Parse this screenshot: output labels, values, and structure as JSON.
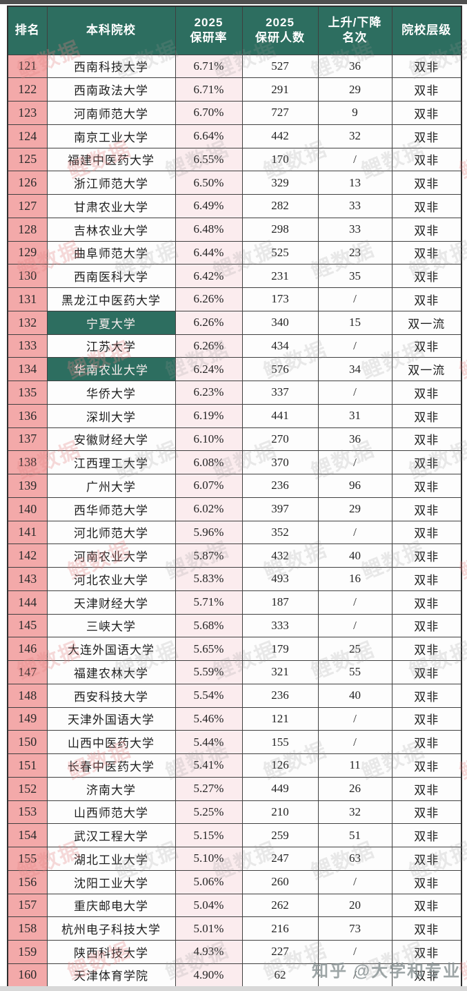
{
  "page": {
    "credit": "知乎 @大学和专业",
    "watermark": "鲤数据"
  },
  "colors": {
    "header_bg": "#2d6e60",
    "rank_bg": "#f3a9a9",
    "rate_bg": "#fbecee",
    "highlight_bg": "#2d6e60",
    "border": "#3f3f3f"
  },
  "chart_data": {
    "type": "table",
    "title": "2025保研率院校排名 121-160",
    "columns": [
      "排名",
      "本科院校",
      "2025保研率",
      "2025保研人数",
      "上升/下降名次",
      "院校层级"
    ],
    "header_display": [
      "排名",
      "本科院校",
      "2025\n保研率",
      "2025\n保研人数",
      "上升/下降\n名次",
      "院校层级"
    ],
    "rows": [
      {
        "rank": "121",
        "name": "西南科技大学",
        "rate": "6.71%",
        "count": "527",
        "change": "36",
        "level": "双非",
        "highlight": false
      },
      {
        "rank": "122",
        "name": "西南政法大学",
        "rate": "6.71%",
        "count": "291",
        "change": "29",
        "level": "双非",
        "highlight": false
      },
      {
        "rank": "123",
        "name": "河南师范大学",
        "rate": "6.70%",
        "count": "727",
        "change": "9",
        "level": "双非",
        "highlight": false
      },
      {
        "rank": "124",
        "name": "南京工业大学",
        "rate": "6.64%",
        "count": "442",
        "change": "32",
        "level": "双非",
        "highlight": false
      },
      {
        "rank": "125",
        "name": "福建中医药大学",
        "rate": "6.55%",
        "count": "170",
        "change": "/",
        "level": "双非",
        "highlight": false
      },
      {
        "rank": "126",
        "name": "浙江师范大学",
        "rate": "6.50%",
        "count": "329",
        "change": "13",
        "level": "双非",
        "highlight": false
      },
      {
        "rank": "127",
        "name": "甘肃农业大学",
        "rate": "6.49%",
        "count": "282",
        "change": "33",
        "level": "双非",
        "highlight": false
      },
      {
        "rank": "128",
        "name": "吉林农业大学",
        "rate": "6.48%",
        "count": "298",
        "change": "33",
        "level": "双非",
        "highlight": false
      },
      {
        "rank": "129",
        "name": "曲阜师范大学",
        "rate": "6.44%",
        "count": "525",
        "change": "23",
        "level": "双非",
        "highlight": false
      },
      {
        "rank": "130",
        "name": "西南医科大学",
        "rate": "6.42%",
        "count": "231",
        "change": "35",
        "level": "双非",
        "highlight": false
      },
      {
        "rank": "131",
        "name": "黑龙江中医药大学",
        "rate": "6.26%",
        "count": "173",
        "change": "/",
        "level": "双非",
        "highlight": false
      },
      {
        "rank": "132",
        "name": "宁夏大学",
        "rate": "6.26%",
        "count": "340",
        "change": "15",
        "level": "双一流",
        "highlight": true
      },
      {
        "rank": "133",
        "name": "江苏大学",
        "rate": "6.26%",
        "count": "434",
        "change": "/",
        "level": "双非",
        "highlight": false
      },
      {
        "rank": "134",
        "name": "华南农业大学",
        "rate": "6.24%",
        "count": "576",
        "change": "34",
        "level": "双一流",
        "highlight": true
      },
      {
        "rank": "135",
        "name": "华侨大学",
        "rate": "6.23%",
        "count": "337",
        "change": "/",
        "level": "双非",
        "highlight": false
      },
      {
        "rank": "136",
        "name": "深圳大学",
        "rate": "6.19%",
        "count": "441",
        "change": "31",
        "level": "双非",
        "highlight": false
      },
      {
        "rank": "137",
        "name": "安徽财经大学",
        "rate": "6.10%",
        "count": "270",
        "change": "36",
        "level": "双非",
        "highlight": false
      },
      {
        "rank": "138",
        "name": "江西理工大学",
        "rate": "6.08%",
        "count": "370",
        "change": "/",
        "level": "双非",
        "highlight": false
      },
      {
        "rank": "139",
        "name": "广州大学",
        "rate": "6.07%",
        "count": "236",
        "change": "96",
        "level": "双非",
        "highlight": false
      },
      {
        "rank": "140",
        "name": "西华师范大学",
        "rate": "6.02%",
        "count": "397",
        "change": "29",
        "level": "双非",
        "highlight": false
      },
      {
        "rank": "141",
        "name": "河北师范大学",
        "rate": "5.96%",
        "count": "352",
        "change": "/",
        "level": "双非",
        "highlight": false
      },
      {
        "rank": "142",
        "name": "河南农业大学",
        "rate": "5.87%",
        "count": "432",
        "change": "40",
        "level": "双非",
        "highlight": false
      },
      {
        "rank": "143",
        "name": "河北农业大学",
        "rate": "5.83%",
        "count": "493",
        "change": "16",
        "level": "双非",
        "highlight": false
      },
      {
        "rank": "144",
        "name": "天津财经大学",
        "rate": "5.71%",
        "count": "187",
        "change": "/",
        "level": "双非",
        "highlight": false
      },
      {
        "rank": "145",
        "name": "三峡大学",
        "rate": "5.68%",
        "count": "333",
        "change": "/",
        "level": "双非",
        "highlight": false
      },
      {
        "rank": "146",
        "name": "大连外国语大学",
        "rate": "5.65%",
        "count": "179",
        "change": "25",
        "level": "双非",
        "highlight": false
      },
      {
        "rank": "147",
        "name": "福建农林大学",
        "rate": "5.59%",
        "count": "321",
        "change": "55",
        "level": "双非",
        "highlight": false
      },
      {
        "rank": "148",
        "name": "西安科技大学",
        "rate": "5.54%",
        "count": "236",
        "change": "40",
        "level": "双非",
        "highlight": false
      },
      {
        "rank": "149",
        "name": "天津外国语大学",
        "rate": "5.46%",
        "count": "121",
        "change": "/",
        "level": "双非",
        "highlight": false
      },
      {
        "rank": "150",
        "name": "山西中医药大学",
        "rate": "5.44%",
        "count": "155",
        "change": "/",
        "level": "双非",
        "highlight": false
      },
      {
        "rank": "151",
        "name": "长春中医药大学",
        "rate": "5.41%",
        "count": "126",
        "change": "11",
        "level": "双非",
        "highlight": false
      },
      {
        "rank": "152",
        "name": "济南大学",
        "rate": "5.27%",
        "count": "449",
        "change": "26",
        "level": "双非",
        "highlight": false
      },
      {
        "rank": "153",
        "name": "山西师范大学",
        "rate": "5.25%",
        "count": "210",
        "change": "32",
        "level": "双非",
        "highlight": false
      },
      {
        "rank": "154",
        "name": "武汉工程大学",
        "rate": "5.15%",
        "count": "259",
        "change": "51",
        "level": "双非",
        "highlight": false
      },
      {
        "rank": "155",
        "name": "湖北工业大学",
        "rate": "5.10%",
        "count": "247",
        "change": "63",
        "level": "双非",
        "highlight": false
      },
      {
        "rank": "156",
        "name": "沈阳工业大学",
        "rate": "5.06%",
        "count": "260",
        "change": "/",
        "level": "双非",
        "highlight": false
      },
      {
        "rank": "157",
        "name": "重庆邮电大学",
        "rate": "5.04%",
        "count": "262",
        "change": "20",
        "level": "双非",
        "highlight": false
      },
      {
        "rank": "158",
        "name": "杭州电子科技大学",
        "rate": "5.01%",
        "count": "216",
        "change": "73",
        "level": "双非",
        "highlight": false
      },
      {
        "rank": "159",
        "name": "陕西科技大学",
        "rate": "4.93%",
        "count": "227",
        "change": "/",
        "level": "双非",
        "highlight": false
      },
      {
        "rank": "160",
        "name": "天津体育学院",
        "rate": "4.90%",
        "count": "62",
        "change": "/",
        "level": "双非",
        "highlight": false
      }
    ]
  }
}
